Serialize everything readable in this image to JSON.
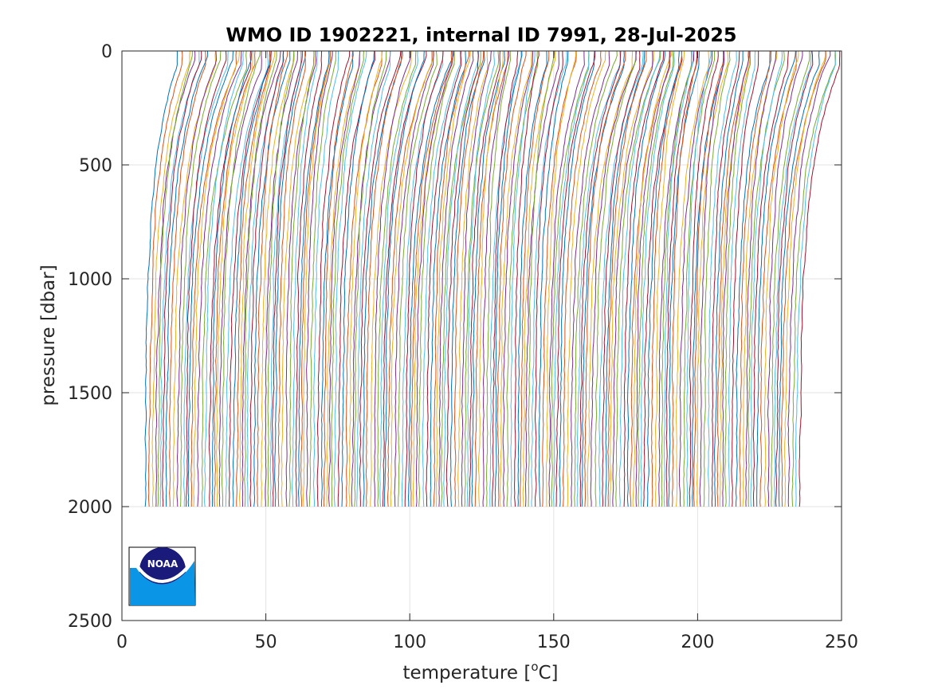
{
  "chart_data": {
    "type": "line",
    "title": "WMO ID 1902221, internal ID 7991, 28-Jul-2025",
    "xlabel_text": "temperature [",
    "xlabel_sup": "o",
    "xlabel_end": "C]",
    "ylabel": "pressure [dbar]",
    "xlim": [
      0,
      250
    ],
    "ylim": [
      0,
      2500
    ],
    "y_reversed": true,
    "xticks": [
      "0",
      "50",
      "100",
      "150",
      "200",
      "250"
    ],
    "yticks": [
      "0",
      "500",
      "1000",
      "1500",
      "2000",
      "2500"
    ],
    "grid": true,
    "profile_count": 210,
    "profile_offset_step": 1.0,
    "profile_pressure_max": 2000,
    "series_colors": [
      "#0072BD",
      "#D95319",
      "#EDB120",
      "#7E2F8E",
      "#77AC30",
      "#4DBEEE",
      "#A2142F"
    ],
    "logo": {
      "text": "NOAA",
      "name": "noaa-logo-icon",
      "colors": {
        "navy": "#1a1a7a",
        "blue": "#0a95e6"
      }
    }
  }
}
